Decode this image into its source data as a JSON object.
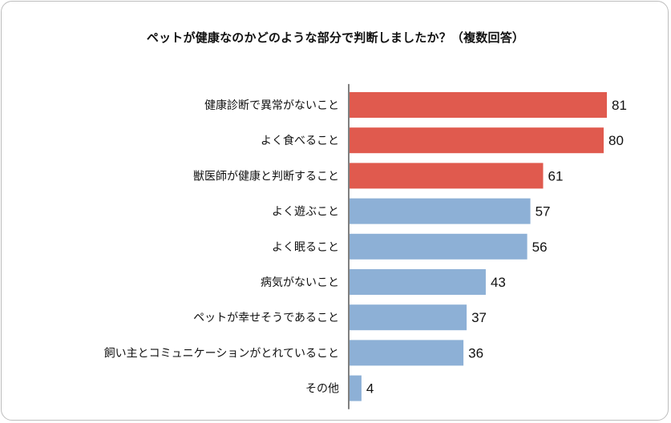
{
  "chart_data": {
    "type": "bar",
    "orientation": "horizontal",
    "title": "ペットが健康なのかどのような部分で判断しましたか？（複数回答）",
    "categories": [
      "健康診断で異常がないこと",
      "よく食べること",
      "獣医師が健康と判断すること",
      "よく遊ぶこと",
      "よく眠ること",
      "病気がないこと",
      "ペットが幸せそうであること",
      "飼い主とコミュニケーションがとれていること",
      "その他"
    ],
    "values": [
      81,
      80,
      61,
      57,
      56,
      43,
      37,
      36,
      4
    ],
    "highlight": [
      true,
      true,
      true,
      false,
      false,
      false,
      false,
      false,
      false
    ],
    "colors": {
      "highlight": "#e05a4e",
      "normal": "#8db0d6",
      "axis": "#808080"
    },
    "xlim": [
      0,
      81
    ],
    "grid": false,
    "legend": "none"
  }
}
